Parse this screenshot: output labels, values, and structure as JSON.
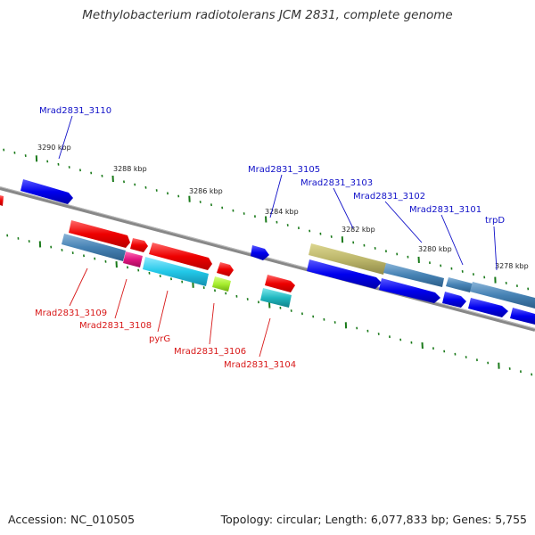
{
  "title": "Methylobacterium radiotolerans JCM 2831, complete genome",
  "footer": {
    "accession": "Accession: NC_010505",
    "summary": "Topology: circular; Length: 6,077,833 bp; Genes: 5,755"
  },
  "ruler_labels": [
    "3290 kbp",
    "3288 kbp",
    "3286 kbp",
    "3284 kbp",
    "3282 kbp",
    "3280 kbp",
    "3278 kbp"
  ],
  "forward_gene_labels": [
    "Mrad2831_3110",
    "Mrad2831_3105",
    "Mrad2831_3103",
    "Mrad2831_3102",
    "Mrad2831_3101",
    "trpD"
  ],
  "reverse_gene_labels": [
    "Mrad2831_3109",
    "Mrad2831_3108",
    "pyrG",
    "Mrad2831_3106",
    "Mrad2831_3104"
  ],
  "colors": {
    "forward_strand": "#0000ee",
    "reverse_strand": "#ee0000",
    "feature_steelblue": "#4682b4",
    "feature_khaki": "#bdb76b",
    "feature_magenta": "#e0157f",
    "feature_cyan": "#22c8e8",
    "feature_lime": "#a8ee30",
    "feature_teal": "#20b8c0",
    "backbone": "#888888",
    "tick_marks": "#1a7a1a"
  }
}
